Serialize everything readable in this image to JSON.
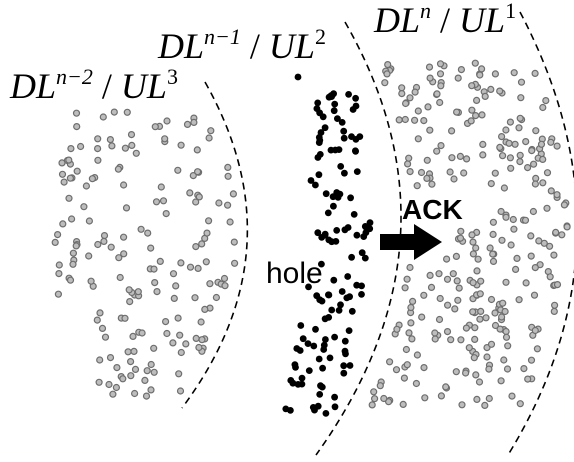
{
  "labels": {
    "left": {
      "base": "DL",
      "sup": "n−2",
      "sep": " / ",
      "base2": "UL",
      "sup2": "3"
    },
    "middle": {
      "base": "DL",
      "sup": "n−1",
      "sep": " / ",
      "base2": "UL",
      "sup2": "2"
    },
    "right": {
      "base": "DL",
      "sup": "n",
      "sep": " / ",
      "base2": "UL",
      "sup2": "1"
    }
  },
  "hole_label": "hole",
  "ack_label": "ACK",
  "colors": {
    "gray_dot_fill": "#bdbdbd",
    "gray_dot_stroke": "#6e6e6e",
    "black_dot": "#000000",
    "boundary": "#000000"
  }
}
